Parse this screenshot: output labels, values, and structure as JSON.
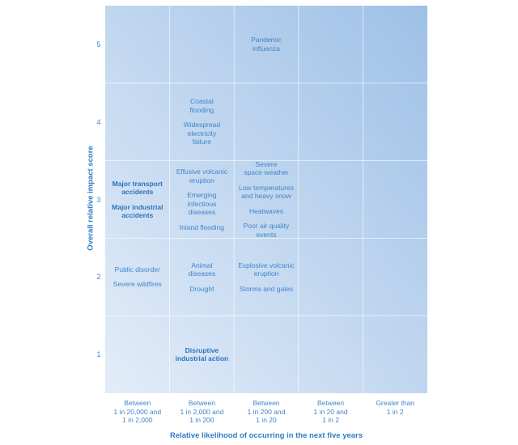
{
  "chart_data": {
    "type": "table",
    "title": "",
    "xlabel": "Relative likelihood of occurring in the next five years",
    "ylabel": "Overall relative impact score",
    "x_categories": [
      "Between\n1 in 20,000 and\n1 in 2,000",
      "Between\n1 in 2,000 and\n1 in 200",
      "Between\n1 in 200 and\n1 in 20",
      "Between\n1 in 20 and\n1 in 2",
      "Greater than\n1 in 2"
    ],
    "y_categories": [
      "1",
      "2",
      "3",
      "4",
      "5"
    ],
    "grid": true,
    "colors": {
      "text": "#2e7bc4",
      "cell_light": "#e3edf9",
      "cell_dark": "#9ec0e6",
      "gridline": "#ffffff"
    },
    "risks": [
      {
        "label": "Pandemic\ninfluenza",
        "likelihood": 3,
        "impact": 5,
        "bold": false
      },
      {
        "label": "Coastal\nflooding",
        "likelihood": 2,
        "impact": 4,
        "bold": false
      },
      {
        "label": "Widespread\nelectricity\nfailure",
        "likelihood": 2,
        "impact": 4,
        "bold": false
      },
      {
        "label": "Major transport\naccidents",
        "likelihood": 1,
        "impact": 3,
        "bold": true
      },
      {
        "label": "Major industrial\naccidents",
        "likelihood": 1,
        "impact": 3,
        "bold": true
      },
      {
        "label": "Effusive volcanic\neruption",
        "likelihood": 2,
        "impact": 3,
        "bold": false
      },
      {
        "label": "Emerging\ninfectious\ndiseases",
        "likelihood": 2,
        "impact": 3,
        "bold": false
      },
      {
        "label": "Inland flooding",
        "likelihood": 2,
        "impact": 3,
        "bold": false
      },
      {
        "label": "Severe\nspace weather",
        "likelihood": 3,
        "impact": 3,
        "bold": false
      },
      {
        "label": "Low temperatures\nand heavy snow",
        "likelihood": 3,
        "impact": 3,
        "bold": false
      },
      {
        "label": "Heatwaves",
        "likelihood": 3,
        "impact": 3,
        "bold": false
      },
      {
        "label": "Poor air quality\nevents",
        "likelihood": 3,
        "impact": 3,
        "bold": false
      },
      {
        "label": "Public disorder",
        "likelihood": 1,
        "impact": 2,
        "bold": false
      },
      {
        "label": "Severe wildfires",
        "likelihood": 1,
        "impact": 2,
        "bold": false
      },
      {
        "label": "Animal\ndiseases",
        "likelihood": 2,
        "impact": 2,
        "bold": false
      },
      {
        "label": "Drought",
        "likelihood": 2,
        "impact": 2,
        "bold": false
      },
      {
        "label": "Explosive volcanic\neruption",
        "likelihood": 3,
        "impact": 2,
        "bold": false
      },
      {
        "label": "Storms and gales",
        "likelihood": 3,
        "impact": 2,
        "bold": false
      },
      {
        "label": "Disruptive\nindustrial action",
        "likelihood": 2,
        "impact": 1,
        "bold": true
      }
    ]
  }
}
